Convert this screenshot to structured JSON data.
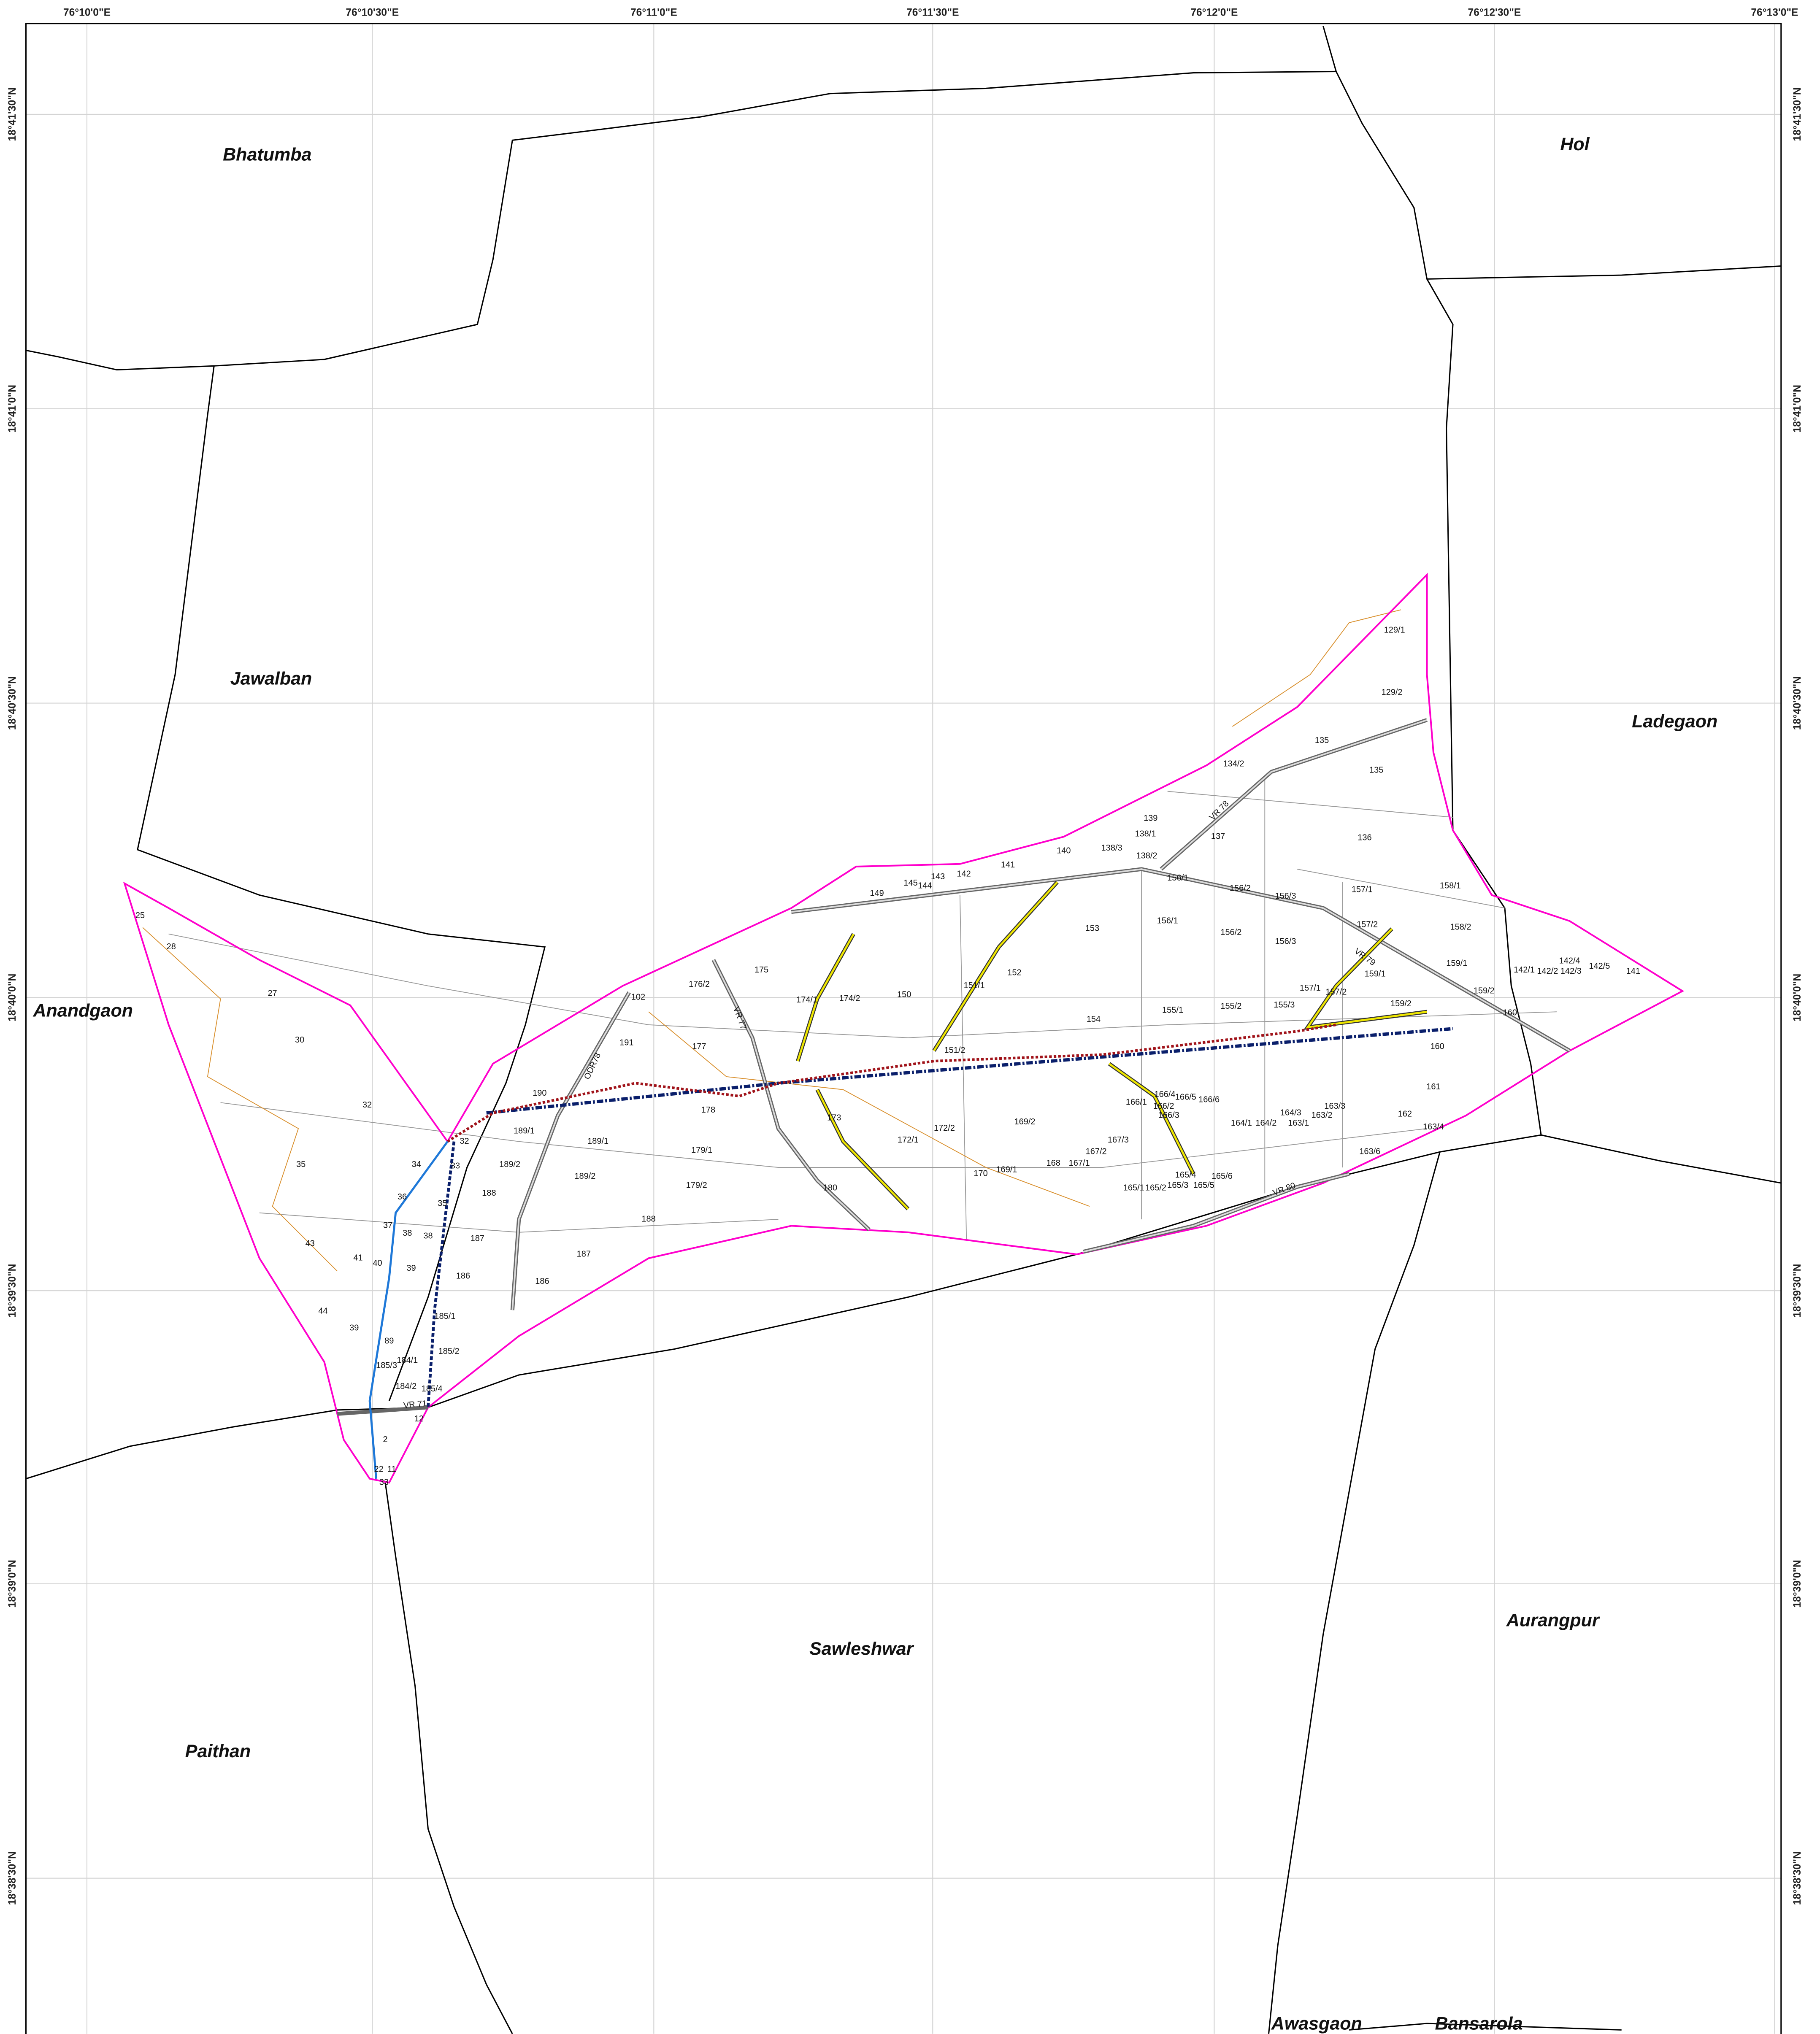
{
  "map": {
    "villages": [
      "Bhatumba",
      "Hol",
      "Jawalban",
      "Ladegaon",
      "Anandgaon",
      "Sawleshwar",
      "Aurangpur",
      "Paithan",
      "Awasgaon",
      "Bansarola"
    ],
    "graticule": {
      "longitude_labels": [
        "76°10'0\"E",
        "76°10'30\"E",
        "76°11'0\"E",
        "76°11'30\"E",
        "76°12'0\"E",
        "76°12'30\"E",
        "76°13'0\"E"
      ],
      "latitude_labels": [
        "18°41'30\"N",
        "18°41'0\"N",
        "18°40'30\"N",
        "18°40'0\"N",
        "18°39'30\"N",
        "18°39'0\"N",
        "18°38'30\"N"
      ]
    },
    "road_labels": [
      "VR 80",
      "VR 78",
      "VR 79",
      "VR 77",
      "ODR78",
      "VR 71"
    ],
    "parcels": [
      "129/1",
      "129/2",
      "135",
      "135",
      "134/2",
      "136",
      "139",
      "138/1",
      "137",
      "138/3",
      "140",
      "138/2",
      "141",
      "142",
      "143",
      "145",
      "144",
      "149",
      "156/1",
      "156/2",
      "156/3",
      "157/1",
      "158/1",
      "153",
      "156/1",
      "156/2",
      "156/3",
      "157/2",
      "158/2",
      "175",
      "176/2",
      "174/1",
      "174/2",
      "150",
      "152",
      "151/1",
      "155/1",
      "155/2",
      "155/3",
      "157/1",
      "157/2",
      "159/1",
      "159/1",
      "142/1",
      "142/2",
      "142/4",
      "142/3",
      "142/5",
      "141",
      "159/2",
      "159/2",
      "160",
      "160",
      "154",
      "102",
      "191",
      "177",
      "151/2",
      "161",
      "162",
      "163/4",
      "163/6",
      "190",
      "178",
      "172/1",
      "172/2",
      "169/2",
      "166/1",
      "166/4",
      "166/5",
      "166/6",
      "166/2",
      "166/3",
      "164/1",
      "164/2",
      "164/3",
      "163/1",
      "163/2",
      "163/3",
      "167/3",
      "167/2",
      "167/1",
      "168",
      "169/1",
      "170",
      "173",
      "180",
      "179/1",
      "179/2",
      "188",
      "187",
      "186",
      "189/1",
      "189/1",
      "189/2",
      "189/2",
      "165/1",
      "165/2",
      "165/3",
      "165/4",
      "165/5",
      "165/6",
      "25",
      "28",
      "27",
      "30",
      "32",
      "35",
      "34",
      "33",
      "32",
      "36",
      "37",
      "38",
      "38",
      "35",
      "188",
      "187",
      "186",
      "43",
      "41",
      "40",
      "39",
      "44",
      "39",
      "185/1",
      "89",
      "185/3",
      "184/1",
      "185/2",
      "184/2",
      "185/4",
      "12",
      "2",
      "22",
      "11",
      "33"
    ]
  }
}
